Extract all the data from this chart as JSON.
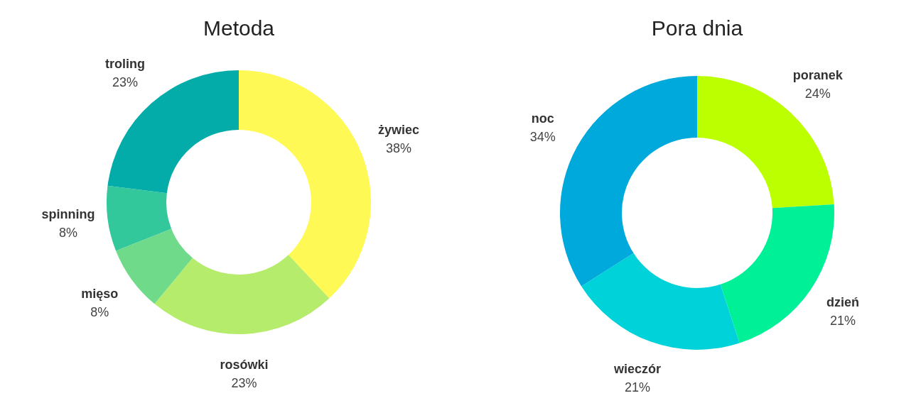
{
  "chart_data": [
    {
      "type": "donut",
      "title": "Metoda",
      "categories": [
        "żywiec",
        "rosówki",
        "mięso",
        "spinning",
        "troling"
      ],
      "values": [
        38,
        23,
        8,
        8,
        23
      ],
      "value_labels": [
        "38%",
        "23%",
        "8%",
        "8%",
        "23%"
      ],
      "colors": [
        "#fff955",
        "#b5ec6b",
        "#6fdb8a",
        "#33c89c",
        "#03aca8"
      ],
      "legend": false
    },
    {
      "type": "donut",
      "title": "Pora dnia",
      "categories": [
        "poranek",
        "dzień",
        "wieczór",
        "noc"
      ],
      "values": [
        24,
        21,
        21,
        34
      ],
      "value_labels": [
        "24%",
        "21%",
        "21%",
        "34%"
      ],
      "colors": [
        "#bbff00",
        "#00f097",
        "#00d2d9",
        "#00a9db"
      ],
      "legend": false
    }
  ]
}
